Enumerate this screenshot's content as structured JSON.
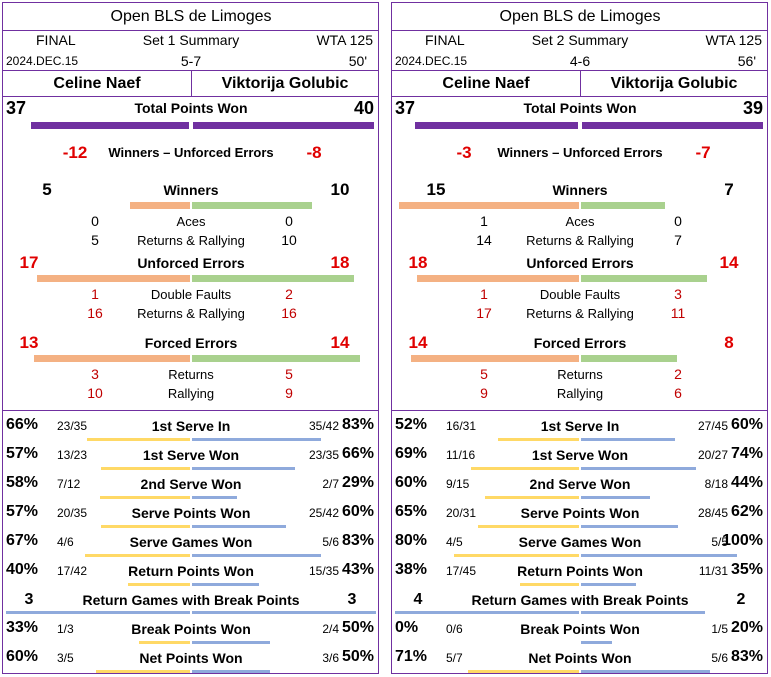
{
  "colors": {
    "purple": "#7030a0",
    "orange": "#f4b183",
    "green": "#a9d18e",
    "yellow": "#ffd966",
    "blue": "#8faadc",
    "red": "#c00000"
  },
  "panels": [
    {
      "title": "Open BLS de Limoges",
      "round": "FINAL",
      "set_label": "Set 1 Summary",
      "tour": "WTA 125",
      "date": "2024.DEC.15",
      "score": "5-7",
      "duration": "50'",
      "player1": "Celine Naef",
      "player2": "Viktorija Golubic",
      "total_points": {
        "label": "Total Points Won",
        "p1": "37",
        "p2": "40",
        "v1": 37,
        "v2": 40
      },
      "wue": {
        "label": "Winners – Unforced Errors",
        "p1": "-12",
        "p2": "-8"
      },
      "winners": {
        "label": "Winners",
        "p1": "5",
        "p2": "10",
        "v1": 5,
        "v2": 10,
        "sub": [
          {
            "label": "Aces",
            "p1": "0",
            "p2": "0"
          },
          {
            "label": "Returns & Rallying",
            "p1": "5",
            "p2": "10"
          }
        ]
      },
      "unforced": {
        "label": "Unforced Errors",
        "p1": "17",
        "p2": "18",
        "v1": 17,
        "v2": 18,
        "sub": [
          {
            "label": "Double Faults",
            "p1": "1",
            "p2": "2"
          },
          {
            "label": "Returns & Rallying",
            "p1": "16",
            "p2": "16"
          }
        ]
      },
      "forced": {
        "label": "Forced Errors",
        "p1": "13",
        "p2": "14",
        "v1": 13,
        "v2": 14,
        "sub": [
          {
            "label": "Returns",
            "p1": "3",
            "p2": "5"
          },
          {
            "label": "Rallying",
            "p1": "10",
            "p2": "9"
          }
        ]
      },
      "stats": [
        {
          "label": "1st Serve In",
          "p1_pct": "66%",
          "p1_frac": "23/35",
          "p2_frac": "35/42",
          "p2_pct": "83%",
          "v1": 0.66,
          "v2": 0.83
        },
        {
          "label": "1st Serve Won",
          "p1_pct": "57%",
          "p1_frac": "13/23",
          "p2_frac": "23/35",
          "p2_pct": "66%",
          "v1": 0.57,
          "v2": 0.66
        },
        {
          "label": "2nd Serve Won",
          "p1_pct": "58%",
          "p1_frac": "7/12",
          "p2_frac": "2/7",
          "p2_pct": "29%",
          "v1": 0.58,
          "v2": 0.29
        },
        {
          "label": "Serve Points Won",
          "p1_pct": "57%",
          "p1_frac": "20/35",
          "p2_frac": "25/42",
          "p2_pct": "60%",
          "v1": 0.57,
          "v2": 0.6
        },
        {
          "label": "Serve Games Won",
          "p1_pct": "67%",
          "p1_frac": "4/6",
          "p2_frac": "5/6",
          "p2_pct": "83%",
          "v1": 0.67,
          "v2": 0.83
        },
        {
          "label": "Return Points Won",
          "p1_pct": "40%",
          "p1_frac": "17/42",
          "p2_frac": "15/35",
          "p2_pct": "43%",
          "v1": 0.4,
          "v2": 0.43
        }
      ],
      "break_games": {
        "label": "Return Games with Break Points",
        "p1": "3",
        "p2": "3",
        "v1": 3,
        "v2": 3
      },
      "stats2": [
        {
          "label": "Break Points Won",
          "p1_pct": "33%",
          "p1_frac": "1/3",
          "p2_frac": "2/4",
          "p2_pct": "50%",
          "v1": 0.33,
          "v2": 0.5
        },
        {
          "label": "Net Points Won",
          "p1_pct": "60%",
          "p1_frac": "3/5",
          "p2_frac": "3/6",
          "p2_pct": "50%",
          "v1": 0.6,
          "v2": 0.5
        }
      ]
    },
    {
      "title": "Open BLS de Limoges",
      "round": "FINAL",
      "set_label": "Set 2 Summary",
      "tour": "WTA 125",
      "date": "2024.DEC.15",
      "score": "4-6",
      "duration": "56'",
      "player1": "Celine Naef",
      "player2": "Viktorija Golubic",
      "total_points": {
        "label": "Total Points Won",
        "p1": "37",
        "p2": "39",
        "v1": 37,
        "v2": 39
      },
      "wue": {
        "label": "Winners – Unforced Errors",
        "p1": "-3",
        "p2": "-7"
      },
      "winners": {
        "label": "Winners",
        "p1": "15",
        "p2": "7",
        "v1": 15,
        "v2": 7,
        "sub": [
          {
            "label": "Aces",
            "p1": "1",
            "p2": "0"
          },
          {
            "label": "Returns & Rallying",
            "p1": "14",
            "p2": "7"
          }
        ]
      },
      "unforced": {
        "label": "Unforced Errors",
        "p1": "18",
        "p2": "14",
        "v1": 18,
        "v2": 14,
        "sub": [
          {
            "label": "Double Faults",
            "p1": "1",
            "p2": "3"
          },
          {
            "label": "Returns & Rallying",
            "p1": "17",
            "p2": "11"
          }
        ]
      },
      "forced": {
        "label": "Forced Errors",
        "p1": "14",
        "p2": "8",
        "v1": 14,
        "v2": 8,
        "sub": [
          {
            "label": "Returns",
            "p1": "5",
            "p2": "2"
          },
          {
            "label": "Rallying",
            "p1": "9",
            "p2": "6"
          }
        ]
      },
      "stats": [
        {
          "label": "1st Serve In",
          "p1_pct": "52%",
          "p1_frac": "16/31",
          "p2_frac": "27/45",
          "p2_pct": "60%",
          "v1": 0.52,
          "v2": 0.6
        },
        {
          "label": "1st Serve Won",
          "p1_pct": "69%",
          "p1_frac": "11/16",
          "p2_frac": "20/27",
          "p2_pct": "74%",
          "v1": 0.69,
          "v2": 0.74
        },
        {
          "label": "2nd Serve Won",
          "p1_pct": "60%",
          "p1_frac": "9/15",
          "p2_frac": "8/18",
          "p2_pct": "44%",
          "v1": 0.6,
          "v2": 0.44
        },
        {
          "label": "Serve Points Won",
          "p1_pct": "65%",
          "p1_frac": "20/31",
          "p2_frac": "28/45",
          "p2_pct": "62%",
          "v1": 0.65,
          "v2": 0.62
        },
        {
          "label": "Serve Games Won",
          "p1_pct": "80%",
          "p1_frac": "4/5",
          "p2_frac": "5/5",
          "p2_pct": "100%",
          "v1": 0.8,
          "v2": 1.0
        },
        {
          "label": "Return Points Won",
          "p1_pct": "38%",
          "p1_frac": "17/45",
          "p2_frac": "11/31",
          "p2_pct": "35%",
          "v1": 0.38,
          "v2": 0.35
        }
      ],
      "break_games": {
        "label": "Return Games with Break Points",
        "p1": "4",
        "p2": "2",
        "v1": 4,
        "v2": 2
      },
      "stats2": [
        {
          "label": "Break Points Won",
          "p1_pct": "0%",
          "p1_frac": "0/6",
          "p2_frac": "1/5",
          "p2_pct": "20%",
          "v1": 0.0,
          "v2": 0.2
        },
        {
          "label": "Net Points Won",
          "p1_pct": "71%",
          "p1_frac": "5/7",
          "p2_frac": "5/6",
          "p2_pct": "83%",
          "v1": 0.71,
          "v2": 0.83
        }
      ]
    }
  ]
}
